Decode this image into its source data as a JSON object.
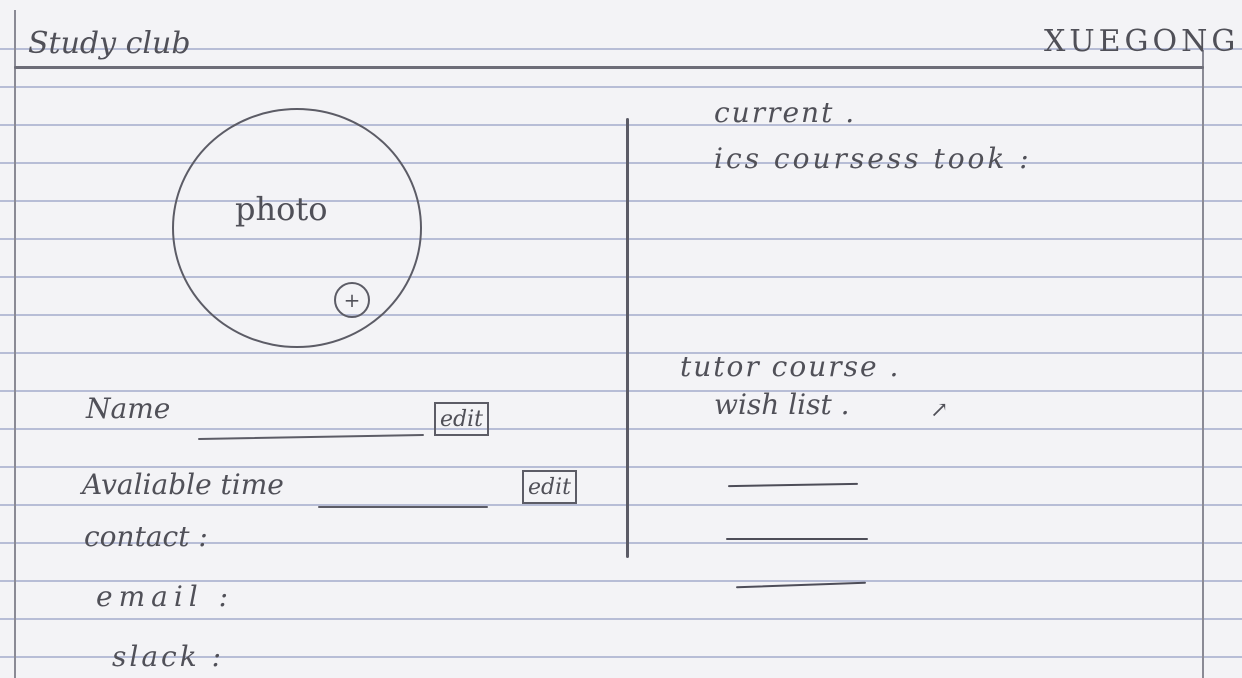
{
  "header": {
    "app_title": "Study club",
    "user_name": "XUEGONG"
  },
  "profile": {
    "photo_label": "photo",
    "add_photo_glyph": "+",
    "name_label": "Name",
    "available_time_label": "Avaliable time",
    "contact_label": "contact :",
    "email_label": "email :",
    "slack_label": "slack :",
    "edit_label": "edit"
  },
  "courses": {
    "current_label": "current .",
    "courses_taken_label": "ics coursess took :",
    "tutor_course_label": "tutor course .",
    "wish_list_label": "wish list .",
    "wish_list_arrow": "↗"
  },
  "icons": {
    "add_photo": "plus-circle-icon",
    "arrow": "arrow-icon"
  }
}
